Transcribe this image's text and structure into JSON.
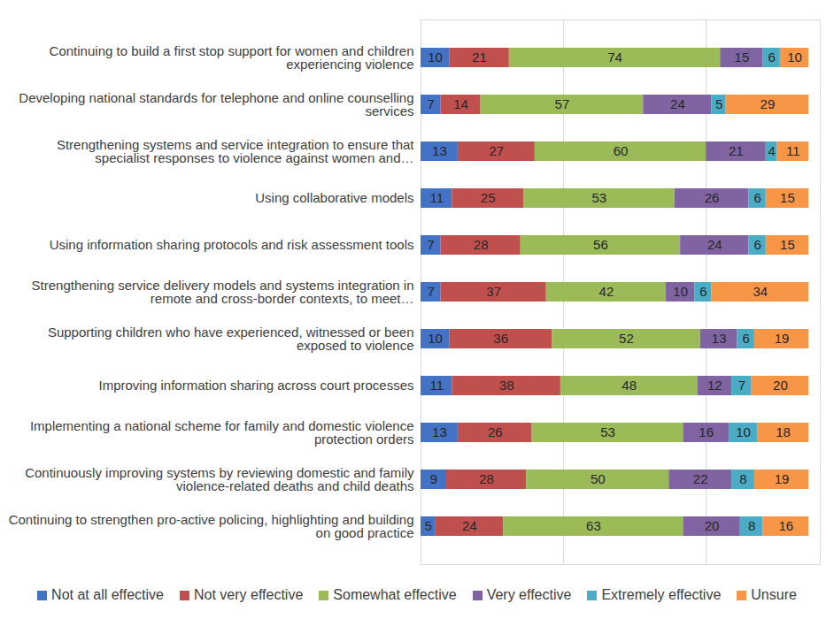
{
  "chart_data": {
    "type": "bar",
    "orientation": "horizontal",
    "stacked": true,
    "data_labels": true,
    "grid": true,
    "legend": "bottom",
    "tick_labels": "y",
    "xlim": [
      0,
      140
    ],
    "xticks": [
      0,
      50,
      100
    ],
    "categories": [
      "Continuing to build a first stop support for women and children experiencing violence",
      "Developing national standards for telephone and online counselling services",
      "Strengthening systems and service integration to ensure that specialist responses to violence against women and…",
      "Using collaborative models",
      "Using information sharing protocols and risk assessment tools",
      "Strengthening service delivery models and systems integration in remote and cross-border contexts, to meet…",
      "Supporting children who have experienced, witnessed or been exposed to violence",
      "Improving information sharing across court processes",
      "Implementing a national scheme for family and domestic violence protection orders",
      "Continuously improving systems by reviewing domestic and family violence-related deaths and child deaths",
      "Continuing to strengthen pro-active policing, highlighting and building on good practice"
    ],
    "series": [
      {
        "name": "Not at all effective",
        "color": "#4472C4",
        "values": [
          10,
          7,
          13,
          11,
          7,
          7,
          10,
          11,
          13,
          9,
          5
        ]
      },
      {
        "name": "Not very effective",
        "color": "#C0504D",
        "values": [
          21,
          14,
          27,
          25,
          28,
          37,
          36,
          38,
          26,
          28,
          24
        ]
      },
      {
        "name": "Somewhat effective",
        "color": "#9BBB59",
        "values": [
          74,
          57,
          60,
          53,
          56,
          42,
          52,
          48,
          53,
          50,
          63
        ]
      },
      {
        "name": "Very effective",
        "color": "#8064A2",
        "values": [
          15,
          24,
          21,
          26,
          24,
          10,
          13,
          12,
          16,
          22,
          20
        ]
      },
      {
        "name": "Extremely effective",
        "color": "#4BACC6",
        "values": [
          6,
          5,
          4,
          6,
          6,
          6,
          6,
          7,
          10,
          8,
          8
        ]
      },
      {
        "name": "Unsure",
        "color": "#F79646",
        "values": [
          10,
          29,
          11,
          15,
          15,
          34,
          19,
          20,
          18,
          19,
          16
        ]
      }
    ]
  }
}
